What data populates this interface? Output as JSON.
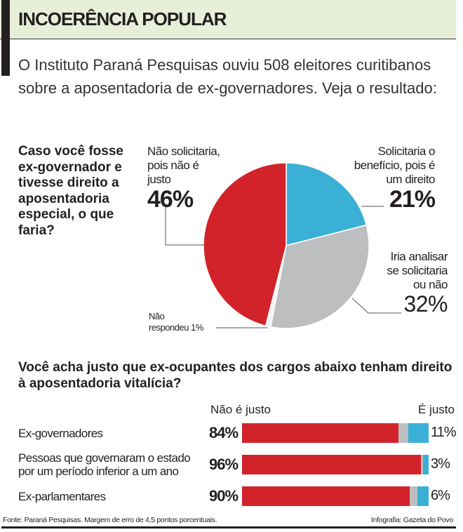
{
  "header": {
    "title": "INCOERÊNCIA POPULAR"
  },
  "intro": "O Instituto Paraná Pesquisas ouviu 508 eleitores curitibanos sobre a aposentadoria de ex-governadores. Veja o resultado:",
  "colors": {
    "red": "#d2232a",
    "blue": "#3ab0d6",
    "gray": "#bcbec0",
    "white": "#f2f2f2"
  },
  "chart_data": [
    {
      "type": "pie",
      "title": "Caso você fosse ex-governador e tivesse direito a aposentadoria especial, o que faria?",
      "slices": [
        {
          "label": "Solicitaria o benefício, pois é um direito",
          "value": 21,
          "display": "21%",
          "color": "#3ab0d6"
        },
        {
          "label": "Iria analisar se solicitaria ou não",
          "value": 32,
          "display": "32%",
          "color": "#bcbec0"
        },
        {
          "label": "Não respondeu",
          "value": 1,
          "display": "1%",
          "color": "#f2f2f2"
        },
        {
          "label": "Não solicitaria, pois não é justo",
          "value": 46,
          "display": "46%",
          "color": "#d2232a"
        }
      ]
    },
    {
      "type": "bar",
      "stacked": true,
      "orientation": "horizontal",
      "title": "Você acha justo que ex-ocupantes dos cargos abaixo tenham direito à aposentadoria vitalícia?",
      "column_headers": {
        "left": "Não é justo",
        "right": "É justo"
      },
      "categories": [
        "Ex-governadores",
        "Pessoas que governaram o estado por um período inferior a um ano",
        "Ex-parlamentares"
      ],
      "category_lines": [
        [
          "Ex-governadores"
        ],
        [
          "Pessoas que governaram o estado",
          "por um período inferior a um ano"
        ],
        [
          "Ex-parlamentares"
        ]
      ],
      "series": [
        {
          "name": "Não é justo",
          "values": [
            84,
            96,
            90
          ],
          "display": [
            "84%",
            "96%",
            "90%"
          ],
          "color": "#d2232a"
        },
        {
          "name": "",
          "values": [
            5,
            1,
            4
          ],
          "color": "#bcbec0"
        },
        {
          "name": "É justo",
          "values": [
            11,
            3,
            6
          ],
          "display": [
            "11%",
            "3%",
            "6%"
          ],
          "color": "#3ab0d6"
        }
      ]
    }
  ],
  "pie_labels": {
    "no": [
      "Não solicitaria,",
      "pois não é",
      "justo"
    ],
    "yes": [
      "Solicitaria o",
      "benefício, pois é",
      "um direito"
    ],
    "maybe": [
      "Iria analisar",
      "se solicitaria",
      "ou não"
    ],
    "nr": [
      "Não",
      "respondeu 1%"
    ]
  },
  "footer": {
    "source": "Fonte: Paraná Pesquisas. Margem de erro de 4,5 pontos porcentuais.",
    "credit": "Infografia: Gazeta do Povo"
  }
}
